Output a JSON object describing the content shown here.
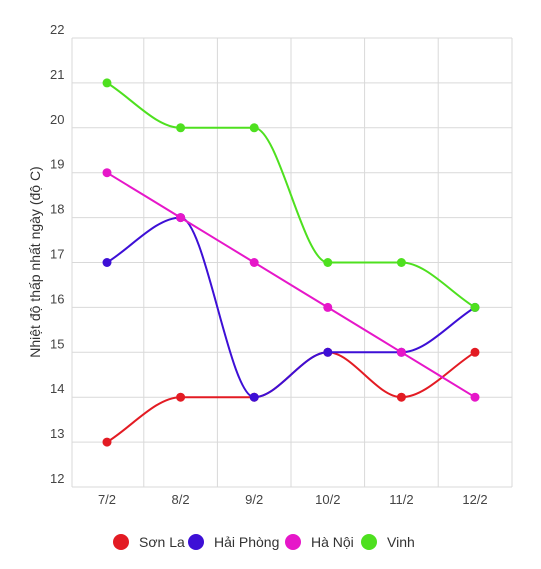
{
  "chart_data": {
    "type": "line",
    "title": "",
    "xlabel": "",
    "ylabel": "Nhiệt độ thấp nhất ngày (độ C)",
    "categories": [
      "7/2",
      "8/2",
      "9/2",
      "10/2",
      "11/2",
      "12/2"
    ],
    "yticks": [
      12,
      13,
      14,
      15,
      16,
      17,
      18,
      19,
      20,
      21,
      22
    ],
    "ylim": [
      12,
      22
    ],
    "grid": true,
    "legend_position": "bottom",
    "series": [
      {
        "name": "Sơn La",
        "color": "#e31b23",
        "values": [
          13,
          14,
          14,
          15,
          14,
          15
        ]
      },
      {
        "name": "Hải Phòng",
        "color": "#3d0fd6",
        "values": [
          17,
          18,
          14,
          15,
          15,
          16
        ]
      },
      {
        "name": "Hà Nội",
        "color": "#e617c9",
        "values": [
          19,
          18,
          17,
          16,
          15,
          14
        ]
      },
      {
        "name": "Vinh",
        "color": "#4ee01f",
        "values": [
          21,
          20,
          20,
          17,
          17,
          16
        ]
      }
    ]
  }
}
